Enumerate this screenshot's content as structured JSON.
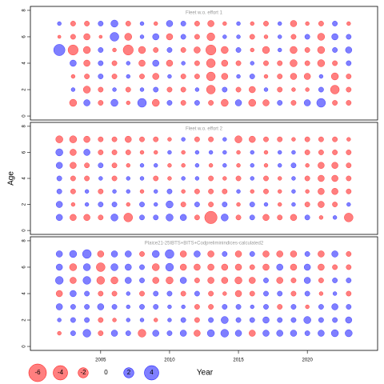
{
  "chart_data": [
    {
      "type": "bubble",
      "title": "Fleet w.o. effort 1",
      "x": [
        2002,
        2003,
        2004,
        2005,
        2006,
        2007,
        2008,
        2009,
        2010,
        2011,
        2012,
        2013,
        2014,
        2015,
        2016,
        2017,
        2018,
        2019,
        2020,
        2021,
        2022,
        2023
      ],
      "y": [
        7,
        6,
        5,
        4,
        3,
        2,
        1
      ],
      "values": [
        [
          0.3,
          -0.5,
          -0.5,
          0.5,
          1,
          -0.5,
          0.3,
          -0.3,
          0.8,
          0.5,
          -0.5,
          -0.8,
          -0.3,
          0.3,
          -0.3,
          -0.5,
          0.3,
          -0.8,
          -0.3,
          -0.5,
          0.5,
          -0.3
        ],
        [
          -0.2,
          -0.5,
          -0.8,
          -0.2,
          1.5,
          -1,
          0.3,
          0.8,
          -0.8,
          0.5,
          -0.5,
          -1.2,
          0.3,
          0.3,
          -0.5,
          -0.3,
          0.3,
          -0.5,
          0.5,
          -1,
          0.8,
          0.5
        ],
        [
          2.5,
          -2,
          -1,
          0.5,
          -0.3,
          -2,
          -1,
          -0.5,
          0.5,
          -0.5,
          -0.8,
          -2,
          -1,
          0.5,
          -0.3,
          -1,
          0.3,
          -1,
          -0.5,
          -1,
          0.5,
          0.8
        ],
        [
          null,
          0.8,
          -0.8,
          0.5,
          -0.5,
          0.3,
          -0.8,
          0.8,
          -0.8,
          0.3,
          -0.5,
          -1.5,
          -0.8,
          -0.5,
          0.3,
          -0.5,
          -0.5,
          -1,
          -0.5,
          -1,
          -0.5,
          0.5
        ],
        [
          null,
          -0.3,
          -0.5,
          0.5,
          -0.5,
          0.3,
          -0.5,
          -0.8,
          0.3,
          -0.5,
          -0.5,
          -1.5,
          -0.8,
          0.3,
          0.5,
          -0.3,
          -0.5,
          -0.8,
          -0.8,
          0.3,
          -1,
          -0.5
        ],
        [
          null,
          0.3,
          -1,
          -0.5,
          0.3,
          -0.5,
          0.3,
          0.5,
          -0.5,
          -0.5,
          0.3,
          -1.5,
          0.5,
          -0.5,
          -0.8,
          0.3,
          -0.5,
          -0.3,
          -0.3,
          0.5,
          -1.5,
          -0.5
        ],
        [
          null,
          -1,
          0.8,
          -0.5,
          1,
          -0.3,
          1.5,
          -1,
          0.5,
          -0.5,
          0.5,
          -0.5,
          -1,
          0.8,
          -1,
          -0.8,
          0.5,
          -0.5,
          0.8,
          1.5,
          -0.5,
          -0.5
        ]
      ],
      "xlim": [
        1999.9,
        2025.1
      ],
      "ylim": [
        -0.3,
        8.3
      ],
      "yticks": [
        0,
        2,
        4,
        6,
        8
      ],
      "neg_color": "#ff0000",
      "pos_color": "#0000ff"
    },
    {
      "type": "bubble",
      "title": "Fleet w.o. effort 2",
      "ylabel": "Age",
      "x": [
        2002,
        2003,
        2004,
        2005,
        2006,
        2007,
        2008,
        2009,
        2010,
        2011,
        2012,
        2013,
        2014,
        2015,
        2016,
        2017,
        2018,
        2019,
        2020,
        2021,
        2022,
        2023
      ],
      "y": [
        7,
        6,
        5,
        4,
        3,
        2,
        1
      ],
      "values": [
        [
          -1,
          -1,
          -0.8,
          -0.5,
          -0.5,
          -0.8,
          -0.5,
          -0.5,
          -0.3,
          0.3,
          -0.5,
          -0.5,
          0.3,
          -1,
          -0.8,
          -0.5,
          -0.5,
          -0.3,
          -0.5,
          -0.5,
          -0.5,
          -0.3
        ],
        [
          1,
          -0.8,
          0.8,
          -0.5,
          -0.5,
          -0.5,
          -0.3,
          -0.3,
          0.3,
          -0.3,
          0.3,
          0.3,
          0.3,
          -0.3,
          0.3,
          -0.3,
          0.3,
          0.3,
          -0.5,
          -0.5,
          -0.5,
          -0.5
        ],
        [
          0.8,
          -0.8,
          -0.5,
          0.5,
          -0.5,
          -0.3,
          0.3,
          0.3,
          -0.3,
          -0.3,
          0.3,
          -0.3,
          0.3,
          -0.3,
          0.3,
          -0.3,
          0.3,
          0.5,
          -0.3,
          -0.8,
          -0.8,
          -0.5
        ],
        [
          0.5,
          -0.5,
          -0.5,
          0.3,
          -0.5,
          0.3,
          0.3,
          -0.5,
          -0.3,
          0.3,
          0.3,
          -0.5,
          -0.3,
          -0.5,
          0.3,
          -0.5,
          -0.3,
          0.3,
          -0.5,
          -0.8,
          -0.8,
          -0.5
        ],
        [
          0.5,
          -0.5,
          0.3,
          -0.5,
          0.3,
          0.3,
          -0.3,
          0.3,
          0.5,
          -0.3,
          -0.5,
          -0.5,
          -0.5,
          0.3,
          -0.3,
          -0.5,
          -0.3,
          0.3,
          -0.3,
          -0.8,
          -0.8,
          -0.5
        ],
        [
          0.8,
          -0.3,
          0.3,
          0.5,
          0.5,
          -0.3,
          0.5,
          0.3,
          1,
          -0.5,
          0.5,
          -0.5,
          0.5,
          -0.3,
          0.5,
          0.3,
          -0.3,
          0.3,
          -0.5,
          -0.8,
          -0.5,
          0.3
        ],
        [
          0.8,
          -0.8,
          -0.8,
          -0.5,
          1,
          -1.5,
          0.5,
          0.5,
          1,
          0.8,
          -0.5,
          -3,
          1,
          -0.5,
          0.5,
          -0.8,
          -0.5,
          -0.8,
          0.5,
          -0.3,
          0.3,
          -1.5
        ]
      ],
      "xlim": [
        1999.9,
        2025.1
      ],
      "ylim": [
        -0.3,
        8.3
      ],
      "yticks": [
        0,
        2,
        4,
        6,
        8
      ],
      "neg_color": "#ff0000",
      "pos_color": "#0000ff"
    },
    {
      "type": "bubble",
      "title": "Plaice21-25IBTS+BITS+Codpreliminindices-calculated2",
      "xlabel": "Year",
      "x": [
        2002,
        2003,
        2004,
        2005,
        2006,
        2007,
        2008,
        2009,
        2010,
        2011,
        2012,
        2013,
        2014,
        2015,
        2016,
        2017,
        2018,
        2019,
        2020,
        2021,
        2022,
        2023
      ],
      "y": [
        7,
        6,
        5,
        4,
        3,
        2,
        1
      ],
      "values": [
        [
          0.8,
          1,
          1.5,
          -0.8,
          0.8,
          0.8,
          -0.5,
          1,
          1.5,
          -0.8,
          0.8,
          -0.8,
          0.5,
          -0.8,
          0.5,
          -0.8,
          -0.8,
          -0.8,
          0.5,
          -0.8,
          0.8,
          -0.5
        ],
        [
          0.8,
          -1,
          1,
          -1.5,
          1,
          0.8,
          0.5,
          -1,
          1.2,
          -0.8,
          -0.8,
          -0.8,
          -0.8,
          -0.8,
          -0.5,
          -0.8,
          0.8,
          -0.8,
          0.8,
          -0.8,
          -0.5,
          -0.5
        ],
        [
          1.2,
          -0.8,
          1.2,
          -1.2,
          -1,
          0.8,
          0.5,
          -0.8,
          -1,
          0.8,
          -0.5,
          -0.8,
          -0.8,
          -1,
          -0.8,
          0.5,
          -0.8,
          -0.5,
          0.8,
          -0.5,
          0.5,
          0.5
        ],
        [
          -0.8,
          0.8,
          0.5,
          -0.5,
          -0.5,
          0.3,
          -0.5,
          0.5,
          0.5,
          -0.5,
          0.5,
          -0.5,
          -0.3,
          -0.8,
          -0.5,
          0.5,
          0.5,
          -0.5,
          0.5,
          -0.3,
          0.3,
          -0.5
        ],
        [
          0.8,
          0.5,
          0.5,
          0.8,
          0.5,
          0.3,
          0.5,
          0.5,
          0.3,
          0.3,
          -0.5,
          -0.5,
          0.5,
          0.5,
          0.3,
          0.5,
          -0.5,
          0.5,
          -0.3,
          0.5,
          0.8,
          0.5
        ],
        [
          0.3,
          0.5,
          0.5,
          -0.5,
          -0.3,
          0.3,
          0.3,
          -0.3,
          0.3,
          0.5,
          -0.5,
          0.5,
          1,
          0.5,
          0.5,
          0.8,
          0.5,
          0.5,
          1,
          0.5,
          0.5,
          0.8
        ],
        [
          -0.3,
          0.5,
          1.2,
          -0.5,
          0.8,
          0.5,
          -1.2,
          0.8,
          0.5,
          0.8,
          -0.8,
          1,
          1.2,
          0.8,
          -0.8,
          0.8,
          0.8,
          0.8,
          0.5,
          0.8,
          1,
          1
        ]
      ],
      "xlim": [
        1999.9,
        2025.1
      ],
      "ylim": [
        -0.3,
        8.3
      ],
      "yticks": [
        0,
        2,
        4,
        6,
        8
      ],
      "xticks": [
        2005,
        2010,
        2015,
        2020
      ],
      "legend": [
        -6,
        -4,
        -2,
        0,
        2,
        4
      ],
      "neg_color": "#ff0000",
      "pos_color": "#0000ff"
    }
  ]
}
